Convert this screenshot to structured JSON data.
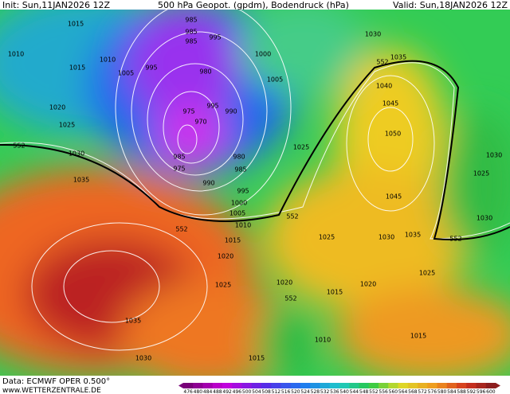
{
  "header": {
    "init": "Init: Sun,11JAN2026 12Z",
    "title": "500 hPa Geopot. (gpdm), Bodendruck (hPa)",
    "valid": "Valid: Sun,18JAN2026 12Z"
  },
  "isobar_labels": [
    "1015",
    "1010",
    "1015",
    "1010",
    "1005",
    "995",
    "985",
    "985",
    "985",
    "995",
    "980",
    "1000",
    "1005",
    "1030",
    "1035",
    "552",
    "1040",
    "1045",
    "1050",
    "1020",
    "1025",
    "552",
    "1030",
    "1035",
    "975",
    "995",
    "990",
    "970",
    "985",
    "975",
    "980",
    "985",
    "990",
    "995",
    "1000",
    "1005",
    "1010",
    "1015",
    "1020",
    "552",
    "552",
    "1025",
    "1045",
    "1025",
    "1030",
    "1035",
    "1030",
    "1025",
    "1030",
    "552",
    "1025",
    "1020",
    "1015",
    "1020",
    "1025",
    "552",
    "1035",
    "1030",
    "1010",
    "1015",
    "1015"
  ],
  "colorbar": {
    "labels": [
      "476",
      "480",
      "484",
      "488",
      "492",
      "496",
      "500",
      "504",
      "508",
      "512",
      "516",
      "520",
      "524",
      "528",
      "532",
      "536",
      "540",
      "544",
      "548",
      "552",
      "556",
      "560",
      "564",
      "568",
      "572",
      "576",
      "580",
      "584",
      "588",
      "592",
      "596",
      "600"
    ]
  },
  "footer": {
    "source": "Data: ECMWF OPER 0.500°",
    "website": "www.WETTERZENTRALE.DE"
  }
}
